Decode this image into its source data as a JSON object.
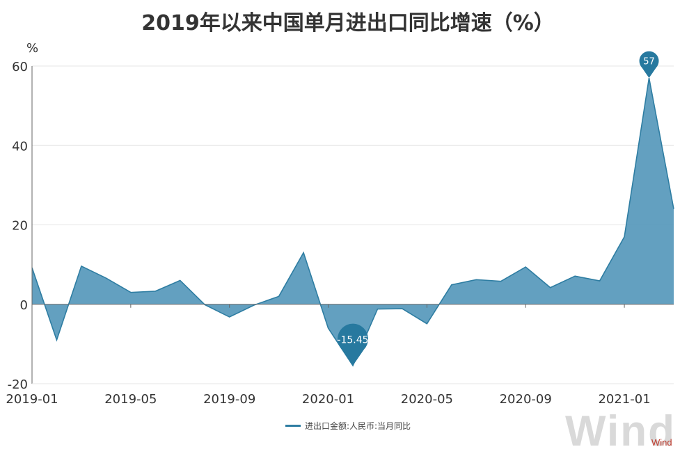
{
  "title": "2019年以来中国单月进出口同比增速（%）",
  "watermark": "Wind",
  "source": "Wind",
  "colors": {
    "line": "#2e7da2",
    "area": "#5b9bbd",
    "grid": "#e6e6e6",
    "axis": "#666666",
    "pin": "#27799f",
    "source": "#c0392b"
  },
  "chart_data": {
    "type": "area",
    "ylabel": "%",
    "ylim": [
      -20,
      60
    ],
    "yticks": [
      -20,
      0,
      20,
      40,
      60
    ],
    "grid": true,
    "legend_position": "bottom",
    "x": [
      "2019-01",
      "2019-02",
      "2019-03",
      "2019-04",
      "2019-05",
      "2019-06",
      "2019-07",
      "2019-08",
      "2019-09",
      "2019-10",
      "2019-11",
      "2019-12",
      "2020-01",
      "2020-02",
      "2020-03",
      "2020-04",
      "2020-05",
      "2020-06",
      "2020-07",
      "2020-08",
      "2020-09",
      "2020-10",
      "2020-11",
      "2020-12",
      "2021-01",
      "2021-02",
      "2021-03"
    ],
    "xticks": [
      "2019-01",
      "2019-05",
      "2019-09",
      "2020-01",
      "2020-05",
      "2020-09",
      "2021-01"
    ],
    "series": [
      {
        "name": "进出口金额:人民币:当月同比",
        "values": [
          9.2,
          -9,
          9.6,
          6.6,
          3.0,
          3.3,
          6.0,
          -0.1,
          -3.2,
          -0.2,
          2.0,
          13.0,
          -6.0,
          -15.45,
          -1.2,
          -1.1,
          -4.9,
          4.9,
          6.2,
          5.8,
          9.4,
          4.2,
          7.1,
          5.9,
          17.0,
          57,
          24.0
        ]
      }
    ],
    "annotations": [
      {
        "label": "-15.45",
        "x": "2020-02",
        "y": -15.45
      },
      {
        "label": "57",
        "x": "2021-02",
        "y": 57
      }
    ]
  }
}
